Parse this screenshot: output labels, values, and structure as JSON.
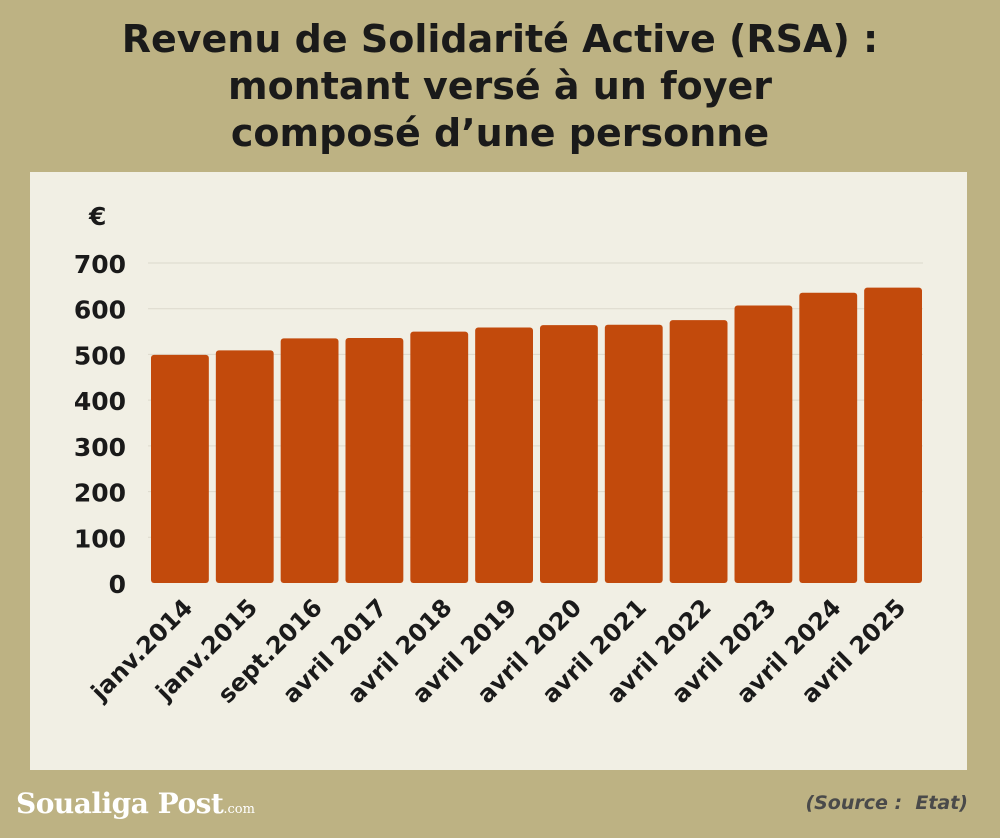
{
  "title_lines": [
    "Revenu de Solidarité Active  (RSA) :",
    "montant versé à un foyer",
    "composé d’une personne"
  ],
  "logo": {
    "name": "Soualiga Post",
    "suffix": ".com"
  },
  "source": "(Source :  Etat)",
  "colors": {
    "background": "#bdb283",
    "panel": "#f1efe4",
    "bar": "#c24a0c",
    "grid": "#dcd9cc",
    "text": "#1a1a1a"
  },
  "chart_data": {
    "type": "bar",
    "title": "Revenu de Solidarité Active  (RSA) : montant versé à un foyer composé d’une personne",
    "ylabel": "€",
    "xlabel": "",
    "categories": [
      "janv.2014",
      "janv.2015",
      "sept.2016",
      "avril 2017",
      "avril 2018",
      "avril 2019",
      "avril 2020",
      "avril 2021",
      "avril 2022",
      "avril 2023",
      "avril 2024",
      "avril 2025"
    ],
    "values": [
      499,
      509,
      535,
      536,
      550,
      559,
      564,
      565,
      575,
      607,
      635,
      646
    ],
    "ylim": [
      0,
      700
    ],
    "yticks": [
      0,
      100,
      200,
      300,
      400,
      500,
      600,
      700
    ],
    "grid": true,
    "legend": "none"
  }
}
